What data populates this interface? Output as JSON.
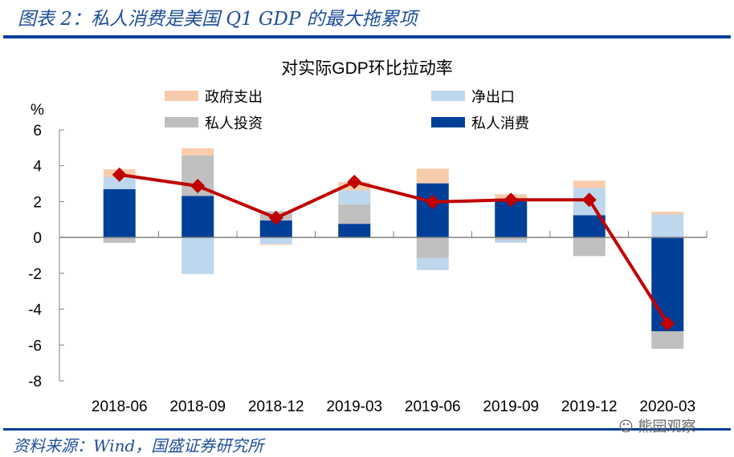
{
  "header": {
    "title": "图表 2：私人消费是美国 Q1 GDP 的最大拖累项"
  },
  "footer": {
    "source": "资料来源：Wind，国盛证券研究所"
  },
  "watermark": {
    "text": "熊园观察"
  },
  "chart_data": {
    "type": "bar",
    "stacked": true,
    "title": "对实际GDP环比拉动率",
    "ylabel": "%",
    "ylim": [
      -8,
      6
    ],
    "yticks": [
      6,
      4,
      2,
      0,
      -2,
      -4,
      -6,
      -8
    ],
    "grid": false,
    "legend_position": "top",
    "categories": [
      "2018-06",
      "2018-09",
      "2018-12",
      "2019-03",
      "2019-06",
      "2019-09",
      "2019-12",
      "2020-03"
    ],
    "series": [
      {
        "name": "私人消费",
        "color": "#003f98",
        "values": [
          2.69,
          2.32,
          0.95,
          0.76,
          3.02,
          2.05,
          1.24,
          -5.24
        ]
      },
      {
        "name": "私人投资",
        "color": "#bfbfbf",
        "values": [
          -0.3,
          2.26,
          0.51,
          1.09,
          -1.15,
          -0.15,
          -1.04,
          -0.97
        ]
      },
      {
        "name": "净出口",
        "color": "#bdd7ee",
        "values": [
          0.67,
          -2.04,
          -0.36,
          0.77,
          -0.67,
          -0.15,
          1.51,
          1.28
        ]
      },
      {
        "name": "政府支出",
        "color": "#f8cbad",
        "values": [
          0.44,
          0.39,
          -0.06,
          0.47,
          0.82,
          0.36,
          0.42,
          0.15
        ]
      }
    ],
    "line": {
      "color": "#c00000",
      "marker": "diamond",
      "values": [
        3.5,
        2.87,
        1.09,
        3.1,
        1.98,
        2.1,
        2.1,
        -4.8
      ]
    },
    "legend_order": [
      "政府支出",
      "净出口",
      "私人投资",
      "私人消费"
    ]
  }
}
